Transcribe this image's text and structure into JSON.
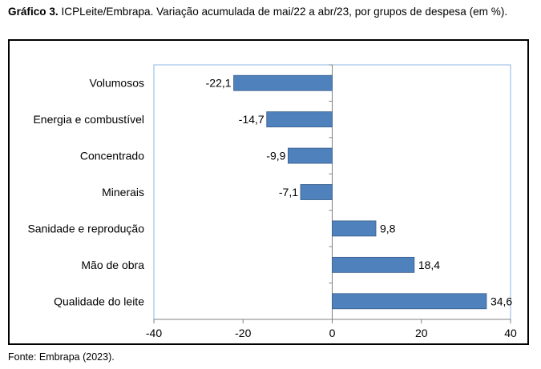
{
  "caption": {
    "lead": "Gráfico 3.",
    "text": "ICPLeite/Embrapa. Variação acumulada de mai/22 a abr/23, por grupos de despesa (em %)."
  },
  "source": "Fonte: Embrapa (2023).",
  "chart_data": {
    "type": "bar",
    "orientation": "horizontal",
    "categories": [
      "Volumosos",
      "Energia e combustível",
      "Concentrado",
      "Minerais",
      "Sanidade e reprodução",
      "Mão de obra",
      "Qualidade do leite"
    ],
    "values": [
      -22.1,
      -14.7,
      -9.9,
      -7.1,
      9.8,
      18.4,
      34.6
    ],
    "value_labels": [
      "-22,1",
      "-14,7",
      "-9,9",
      "-7,1",
      "9,8",
      "18,4",
      "34,6"
    ],
    "xlim": [
      -40,
      40
    ],
    "xticks": [
      -40,
      -20,
      0,
      20,
      40
    ],
    "xtick_labels": [
      "-40",
      "-20",
      "0",
      "20",
      "40"
    ],
    "title": "",
    "xlabel": "",
    "ylabel": "",
    "grid": false,
    "legend": "none",
    "bar_color": "#4f81bd",
    "bar_border_color": "#385d8a",
    "plot_border_color": "#8eb4e3"
  }
}
